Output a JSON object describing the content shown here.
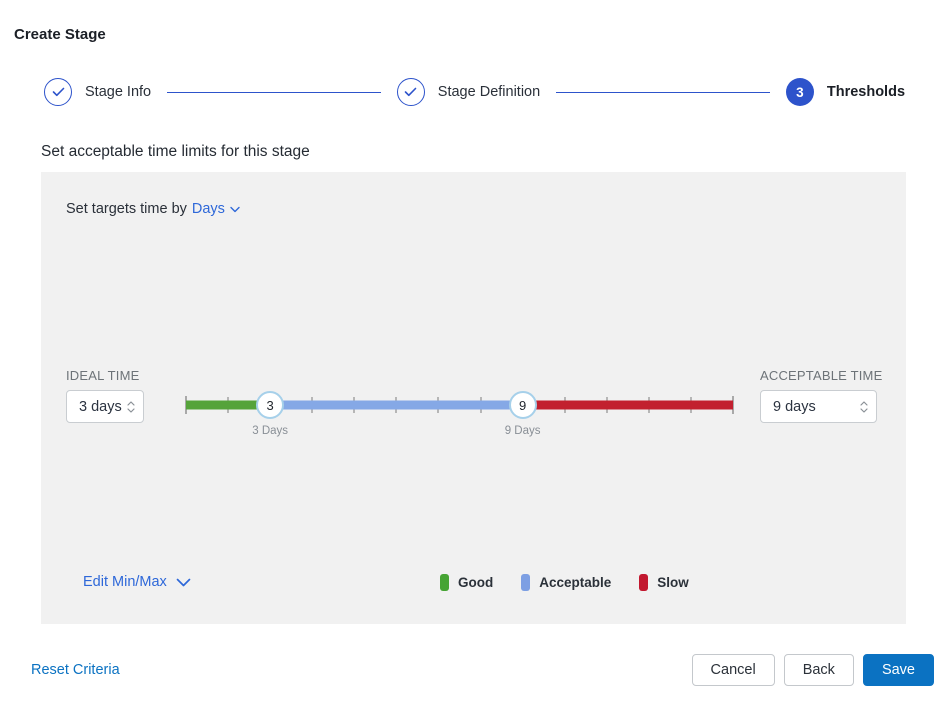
{
  "page": {
    "title": "Create Stage"
  },
  "stepper": {
    "steps": [
      {
        "label": "Stage Info",
        "state": "complete"
      },
      {
        "label": "Stage Definition",
        "state": "complete"
      },
      {
        "label": "Thresholds",
        "state": "current",
        "number": "3"
      }
    ]
  },
  "section": {
    "heading": "Set acceptable time limits for this stage"
  },
  "targets": {
    "prefix": "Set targets time by",
    "unit": "Days"
  },
  "ideal": {
    "label": "IDEAL TIME",
    "value": "3 days"
  },
  "acceptable": {
    "label": "ACCEPTABLE TIME",
    "value": "9 days"
  },
  "slider": {
    "min": 1,
    "max": 14,
    "ideal_value": 3,
    "acceptable_value": 9,
    "ideal_handle": "3",
    "acceptable_handle": "9",
    "ideal_tooltip": "3 Days",
    "acceptable_tooltip": "9 Days",
    "colors": {
      "good": "#55a33a",
      "acceptable": "#85a8e6",
      "slow": "#c2202f"
    }
  },
  "edit_minmax": {
    "label": "Edit Min/Max"
  },
  "legend": [
    {
      "label": "Good",
      "color": "#46a434"
    },
    {
      "label": "Acceptable",
      "color": "#7d9fe3"
    },
    {
      "label": "Slow",
      "color": "#c2182f"
    }
  ],
  "footer": {
    "reset": "Reset Criteria",
    "cancel": "Cancel",
    "back": "Back",
    "save": "Save"
  }
}
